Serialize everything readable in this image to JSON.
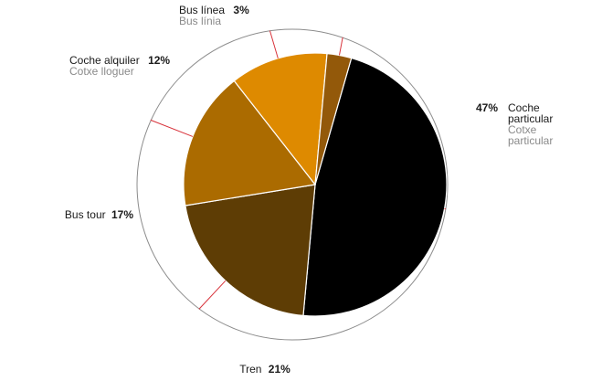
{
  "chart_data": {
    "type": "pie",
    "slices": [
      {
        "key": "coche",
        "value": 47,
        "color": "#000000",
        "pct_label": "47%",
        "name": [
          "Coche",
          "particular"
        ],
        "alt": [
          "Cotxe",
          "particular"
        ]
      },
      {
        "key": "tren",
        "value": 21,
        "color": "#5e3d05",
        "pct_label": "21%",
        "name": [
          "Tren"
        ],
        "alt": []
      },
      {
        "key": "bustour",
        "value": 17,
        "color": "#ab6b00",
        "pct_label": "17%",
        "name": [
          "Bus tour"
        ],
        "alt": []
      },
      {
        "key": "alquiler",
        "value": 12,
        "color": "#de8a00",
        "pct_label": "12%",
        "name": [
          "Coche alquiler"
        ],
        "alt": [
          "Cotxe lloguer"
        ]
      },
      {
        "key": "buslinea",
        "value": 3,
        "color": "#93590a",
        "pct_label": "3%",
        "name": [
          "Bus línea"
        ],
        "alt": [
          "Bus línia"
        ]
      }
    ],
    "outer_ring_color": "#8c8c8c",
    "leader_color": "#d8323a"
  }
}
